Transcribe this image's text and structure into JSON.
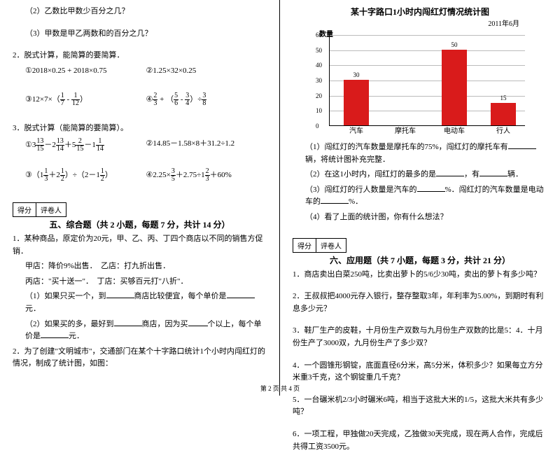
{
  "left": {
    "q2_2": "（2）乙数比甲数少百分之几？",
    "q2_3": "（3）甲数是甲乙两数和的百分之几？",
    "p2_title": "2．脱式计算，能简算的要简算．",
    "p2_a": "①2018×0.25 + 2018×0.75",
    "p2_b": "②1.25×32×0.25",
    "p2_c_pre": "③12×7×（",
    "p2_c_f1n": "1",
    "p2_c_f1d": "7",
    "p2_c_mid": " - ",
    "p2_c_f2n": "1",
    "p2_c_f2d": "12",
    "p2_c_post": "）",
    "p2_d_pre": "④",
    "p2_d_f1n": "2",
    "p2_d_f1d": "3",
    "p2_d_m1": " + （",
    "p2_d_f2n": "5",
    "p2_d_f2d": "6",
    "p2_d_m2": " - ",
    "p2_d_f3n": "3",
    "p2_d_f3d": "4",
    "p2_d_m3": "）÷",
    "p2_d_f4n": "3",
    "p2_d_f4d": "8",
    "p3_title": "3．脱式计算（能简算的要简算）。",
    "p3_a_pre": "①3",
    "p3_a_f1n": "13",
    "p3_a_f1d": "15",
    "p3_a_m1": "－2",
    "p3_a_f2n": "13",
    "p3_a_f2d": "14",
    "p3_a_m2": "＋5",
    "p3_a_f3n": "2",
    "p3_a_f3d": "15",
    "p3_a_m3": "－1",
    "p3_a_f4n": "1",
    "p3_a_f4d": "14",
    "p3_b": "②14.85－1.58×8＋31.2÷1.2",
    "p3_c_pre": "③（1",
    "p3_c_f1n": "1",
    "p3_c_f1d": "3",
    "p3_c_m1": "＋2",
    "p3_c_f2n": "1",
    "p3_c_f2d": "2",
    "p3_c_m2": "）÷（2－1",
    "p3_c_f3n": "1",
    "p3_c_f3d": "2",
    "p3_c_m3": "）",
    "p3_d_pre": "④2.25×",
    "p3_d_f1n": "3",
    "p3_d_f1d": "5",
    "p3_d_m1": "＋2.75÷1",
    "p3_d_f2n": "2",
    "p3_d_f2d": "3",
    "p3_d_m2": "＋60%",
    "score1": "得分",
    "score2": "评卷人",
    "sec5": "五、综合题（共 2 小题，每题 7 分，共计 14 分）",
    "s5_1": "1．某种商品，原定价为20元，甲、乙、丙、丁四个商店以不同的销售方促销．",
    "s5_1a": "甲店：降价9%出售．　乙店：打九折出售．",
    "s5_1b": "丙店：\"买十送一\"．　丁店：买够百元打\"八折\"．",
    "s5_1c_pre": "（1）如果只买一个，到",
    "s5_1c_mid": "商店比较便宜，每个单价是",
    "s5_1c_post": "元．",
    "s5_1d_pre": "（2）如果买的多，最好到",
    "s5_1d_mid": "商店，因为买",
    "s5_1d_mid2": "个以上，每个单价是",
    "s5_1d_post": "元．",
    "s5_2": "2．为了创建\"文明城市\"，交通部门在某个十字路口统计1个小时内闯红灯的情况，制成了统计图，如图：",
    "footer": "第 2 页 共 4 页"
  },
  "right": {
    "chart_title": "某十字路口1小时内闯红灯情况统计图",
    "chart_date": "2011年6月",
    "ylabel": "数量",
    "yticks": [
      "0",
      "10",
      "20",
      "30",
      "40",
      "50",
      "60"
    ],
    "cats": [
      "汽车",
      "摩托车",
      "电动车",
      "行人"
    ],
    "vals": [
      30,
      null,
      50,
      15
    ],
    "barlabels": [
      "30",
      "",
      "50",
      "15"
    ],
    "bar_color": "#d91b1b",
    "r1_pre": "（1）闯红灯的汽车数量是摩托车的75%，闯红灯的摩托车有",
    "r1_post": "辆，将统计图补充完整．",
    "r2_pre": "（2）在这1小时内，闯红灯的最多的是",
    "r2_mid": "，有",
    "r2_post": "辆．",
    "r3_pre": "（3）闯红灯的行人数量是汽车的",
    "r3_mid": "%．闯红灯的汽车数量是电动车的",
    "r3_post": "%．",
    "r4": "（4）看了上面的统计图，你有什么想法？",
    "sec6": "六、应用题（共 7 小题，每题 3 分，共计 21 分）",
    "a1": "1．商店卖出白菜250吨，比卖出萝卜的5/6少30吨，卖出的萝卜有多少吨？",
    "a2": "2．王叔叔把4000元存入银行，整存整取3年，年利率为5.00%，到期时有利息多少元？",
    "a3": "3．鞋厂生产的皮鞋，十月份生产双数与九月份生产双数的比是5：4．十月份生产了3000双，九月份生产了多少双？",
    "a4": "4．一个圆锥形钢锭，底面直径6分米，高5分米，体积多少？如果每立方分米重3千克，这个钢锭重几千克？",
    "a5": "5．一台碾米机2/3小时碾米6吨，相当于这批大米的1/5，这批大米共有多少吨？",
    "a6": "6．一项工程，甲独做20天完成，乙独做30天完成，现在两人合作，完成后共得工资3500元。"
  }
}
